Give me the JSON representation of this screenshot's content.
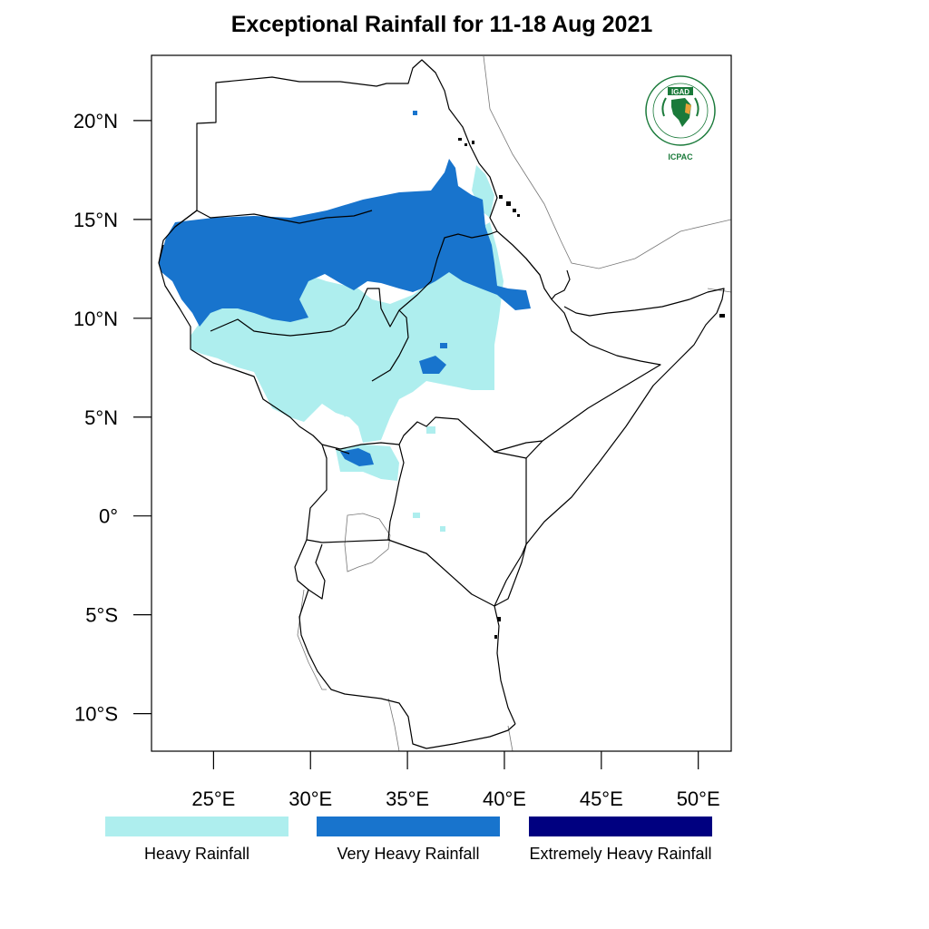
{
  "title": "Exceptional Rainfall for 11-18 Aug 2021",
  "lat_ticks": [
    {
      "value": 20,
      "label": "20°N"
    },
    {
      "value": 15,
      "label": "15°N"
    },
    {
      "value": 10,
      "label": "10°N"
    },
    {
      "value": 5,
      "label": "5°N"
    },
    {
      "value": 0,
      "label": "0°"
    },
    {
      "value": -5,
      "label": "5°S"
    },
    {
      "value": -10,
      "label": "10°S"
    }
  ],
  "lon_ticks": [
    {
      "value": 25,
      "label": "25°E"
    },
    {
      "value": 30,
      "label": "30°E"
    },
    {
      "value": 35,
      "label": "35°E"
    },
    {
      "value": 40,
      "label": "40°E"
    },
    {
      "value": 45,
      "label": "45°E"
    },
    {
      "value": 50,
      "label": "50°E"
    }
  ],
  "extent": {
    "lon": [
      21.8,
      51.7
    ],
    "lat": [
      -11.9,
      23.3
    ]
  },
  "legend": [
    {
      "label": "Heavy Rainfall",
      "color": "#aeeeee"
    },
    {
      "label": "Very Heavy Rainfall",
      "color": "#1874cd"
    },
    {
      "label": "Extremely Heavy Rainfall",
      "color": "#000080"
    }
  ],
  "logo": {
    "name": "IGAD",
    "subname": "ICPAC",
    "colors": {
      "green": "#1a7a3a",
      "gold": "#e8a33a"
    }
  },
  "chart_data": {
    "type": "heatmap",
    "title": "Exceptional Rainfall for 11-18 Aug 2021",
    "xlabel": "",
    "ylabel": "",
    "xlim": [
      21.8,
      51.7
    ],
    "ylim": [
      -11.9,
      23.3
    ],
    "categories": [
      "Heavy Rainfall",
      "Very Heavy Rainfall",
      "Extremely Heavy Rainfall"
    ],
    "colors": [
      "#aeeeee",
      "#1874cd",
      "#000080"
    ]
  }
}
